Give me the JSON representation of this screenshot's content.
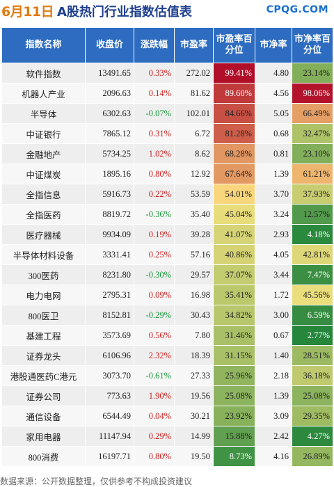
{
  "header": {
    "date": "6月11日",
    "title": "A股热门行业指数估值表",
    "logo": "CPQG.COM"
  },
  "table": {
    "columns": [
      "指数名称",
      "收盘价",
      "涨跌幅",
      "市盈率",
      "市盈率百分位",
      "市净率",
      "市净率百分位"
    ],
    "rows": [
      {
        "name": "软件指数",
        "close": "13491.65",
        "change": "0.33%",
        "pe": "272.02",
        "pe_pct": "99.41%",
        "pb": "4.80",
        "pb_pct": "23.14%"
      },
      {
        "name": "机器人产业",
        "close": "2096.63",
        "change": "0.14%",
        "pe": "81.62",
        "pe_pct": "89.60%",
        "pb": "4.56",
        "pb_pct": "98.06%"
      },
      {
        "name": "半导体",
        "close": "6302.63",
        "change": "-0.07%",
        "pe": "102.01",
        "pe_pct": "84.66%",
        "pb": "5.05",
        "pb_pct": "66.49%"
      },
      {
        "name": "中证银行",
        "close": "7865.12",
        "change": "0.31%",
        "pe": "6.72",
        "pe_pct": "81.28%",
        "pb": "0.68",
        "pb_pct": "32.47%"
      },
      {
        "name": "金融地产",
        "close": "5734.25",
        "change": "1.02%",
        "pe": "8.62",
        "pe_pct": "68.28%",
        "pb": "0.81",
        "pb_pct": "23.10%"
      },
      {
        "name": "中证煤炭",
        "close": "1895.16",
        "change": "0.80%",
        "pe": "12.92",
        "pe_pct": "67.64%",
        "pb": "1.39",
        "pb_pct": "61.21%"
      },
      {
        "name": "全指信息",
        "close": "5916.73",
        "change": "0.22%",
        "pe": "53.59",
        "pe_pct": "54.01%",
        "pb": "3.70",
        "pb_pct": "37.93%"
      },
      {
        "name": "全指医药",
        "close": "8819.72",
        "change": "-0.36%",
        "pe": "35.40",
        "pe_pct": "45.04%",
        "pb": "3.24",
        "pb_pct": "12.57%"
      },
      {
        "name": "医疗器械",
        "close": "9934.09",
        "change": "0.19%",
        "pe": "39.28",
        "pe_pct": "41.07%",
        "pb": "2.93",
        "pb_pct": "4.18%"
      },
      {
        "name": "半导体材料设备",
        "close": "3331.41",
        "change": "0.25%",
        "pe": "57.16",
        "pe_pct": "40.86%",
        "pb": "4.05",
        "pb_pct": "42.81%"
      },
      {
        "name": "300医药",
        "close": "8231.80",
        "change": "-0.30%",
        "pe": "29.57",
        "pe_pct": "37.07%",
        "pb": "3.44",
        "pb_pct": "7.47%"
      },
      {
        "name": "电力电网",
        "close": "2795.31",
        "change": "0.09%",
        "pe": "16.98",
        "pe_pct": "35.41%",
        "pb": "1.72",
        "pb_pct": "45.56%"
      },
      {
        "name": "800医卫",
        "close": "8152.81",
        "change": "-0.29%",
        "pe": "30.43",
        "pe_pct": "34.82%",
        "pb": "3.00",
        "pb_pct": "6.59%"
      },
      {
        "name": "基建工程",
        "close": "3573.69",
        "change": "0.56%",
        "pe": "7.80",
        "pe_pct": "31.46%",
        "pb": "0.67",
        "pb_pct": "2.77%"
      },
      {
        "name": "证券龙头",
        "close": "6106.96",
        "change": "2.32%",
        "pe": "18.39",
        "pe_pct": "31.15%",
        "pb": "1.40",
        "pb_pct": "28.51%"
      },
      {
        "name": "港股通医药C港元",
        "close": "3073.70",
        "change": "-0.61%",
        "pe": "27.33",
        "pe_pct": "25.96%",
        "pb": "2.18",
        "pb_pct": "36.18%"
      },
      {
        "name": "证券公司",
        "close": "773.63",
        "change": "1.90%",
        "pe": "19.56",
        "pe_pct": "25.08%",
        "pb": "1.39",
        "pb_pct": "25.08%"
      },
      {
        "name": "通信设备",
        "close": "6544.49",
        "change": "0.04%",
        "pe": "30.21",
        "pe_pct": "23.92%",
        "pb": "3.09",
        "pb_pct": "29.35%"
      },
      {
        "name": "家用电器",
        "close": "11147.94",
        "change": "0.29%",
        "pe": "14.99",
        "pe_pct": "15.88%",
        "pb": "2.42",
        "pb_pct": "4.27%"
      },
      {
        "name": "800消费",
        "close": "16197.71",
        "change": "0.80%",
        "pe": "19.50",
        "pe_pct": "8.73%",
        "pb": "4.16",
        "pb_pct": "26.89%"
      }
    ]
  },
  "footer": {
    "source": "数据来源：公开数据整理，仅供参考不构成投资建议"
  },
  "colors": {
    "header_bg": "#2d6cc0",
    "up": "#d02020",
    "down": "#1a9a3a",
    "date": "#e07a10",
    "title": "#1f3f8f",
    "logo": "#1a6fd0"
  }
}
